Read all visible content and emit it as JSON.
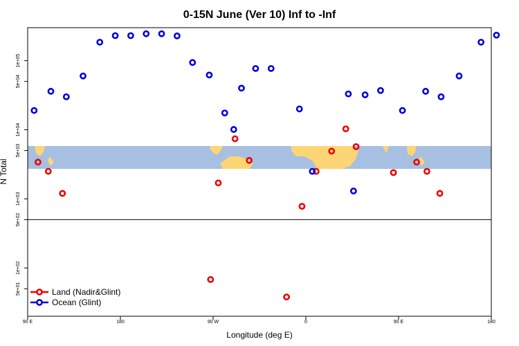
{
  "chart_data": {
    "type": "scatter",
    "title": "0-15N June (Ver 10)   Inf to -Inf",
    "xlabel": "Longitude (deg E)",
    "ylabel": "N Total",
    "y_scale": "log",
    "xlim": [
      90,
      450
    ],
    "ylim": [
      20,
      300000
    ],
    "x_ticks": [
      {
        "value": 90,
        "label": "90 E"
      },
      {
        "value": 162,
        "label": "180"
      },
      {
        "value": 234,
        "label": "90 W"
      },
      {
        "value": 306,
        "label": "0"
      },
      {
        "value": 378,
        "label": "90 E"
      },
      {
        "value": 450,
        "label": "180"
      }
    ],
    "y_ticks": [
      {
        "value": 50,
        "label": "5e+01"
      },
      {
        "value": 100,
        "label": "1e+02"
      },
      {
        "value": 500,
        "label": "5e+02"
      },
      {
        "value": 1000,
        "label": "1e+03"
      },
      {
        "value": 5000,
        "label": "5e+03"
      },
      {
        "value": 10000,
        "label": "1e+04"
      },
      {
        "value": 50000,
        "label": "5e+04"
      },
      {
        "value": 100000,
        "label": "1e+05"
      }
    ],
    "reference_line_y": 500,
    "map_band": {
      "lat_range": "0-15N",
      "land_color": "#FCD575",
      "ocean_color": "#A7BFE0"
    },
    "legend": {
      "position": "bottom-left"
    },
    "series": [
      {
        "name": "Land (Nadir&Glint)",
        "color": "#EE0000",
        "points": [
          {
            "x": 98,
            "y": 3400
          },
          {
            "x": 106,
            "y": 2500
          },
          {
            "x": 117,
            "y": 1200
          },
          {
            "x": 232,
            "y": 68
          },
          {
            "x": 238,
            "y": 1700
          },
          {
            "x": 251,
            "y": 7400
          },
          {
            "x": 262,
            "y": 3600
          },
          {
            "x": 291,
            "y": 38
          },
          {
            "x": 303,
            "y": 780
          },
          {
            "x": 314,
            "y": 2500
          },
          {
            "x": 326,
            "y": 4900
          },
          {
            "x": 337,
            "y": 10300
          },
          {
            "x": 345,
            "y": 5700
          },
          {
            "x": 374,
            "y": 2400
          },
          {
            "x": 392,
            "y": 3400
          },
          {
            "x": 400,
            "y": 2500
          },
          {
            "x": 410,
            "y": 1200
          }
        ]
      },
      {
        "name": "Ocean (Glint)",
        "color": "#0000DD",
        "points": [
          {
            "x": 95,
            "y": 19000
          },
          {
            "x": 108,
            "y": 36000
          },
          {
            "x": 120,
            "y": 30000
          },
          {
            "x": 133,
            "y": 60000
          },
          {
            "x": 146,
            "y": 185000
          },
          {
            "x": 158,
            "y": 230000
          },
          {
            "x": 170,
            "y": 230000
          },
          {
            "x": 182,
            "y": 245000
          },
          {
            "x": 194,
            "y": 245000
          },
          {
            "x": 206,
            "y": 228000
          },
          {
            "x": 218,
            "y": 94000
          },
          {
            "x": 231,
            "y": 62000
          },
          {
            "x": 243,
            "y": 17500
          },
          {
            "x": 250,
            "y": 10100
          },
          {
            "x": 256,
            "y": 40000
          },
          {
            "x": 267,
            "y": 77000
          },
          {
            "x": 279,
            "y": 77000
          },
          {
            "x": 301,
            "y": 20000
          },
          {
            "x": 311,
            "y": 2500
          },
          {
            "x": 343,
            "y": 1300
          },
          {
            "x": 339,
            "y": 33000
          },
          {
            "x": 352,
            "y": 32000
          },
          {
            "x": 364,
            "y": 37000
          },
          {
            "x": 381,
            "y": 19000
          },
          {
            "x": 399,
            "y": 36000
          },
          {
            "x": 411,
            "y": 30000
          },
          {
            "x": 425,
            "y": 60000
          },
          {
            "x": 442,
            "y": 185000
          },
          {
            "x": 454,
            "y": 234000
          }
        ]
      }
    ]
  }
}
